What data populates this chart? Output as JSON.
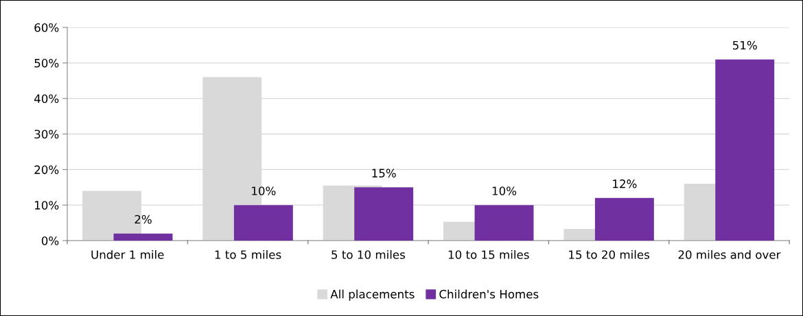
{
  "chart_data": {
    "type": "bar",
    "categories": [
      "Under 1 mile",
      "1 to 5 miles",
      "5 to 10 miles",
      "10 to 15 miles",
      "15 to 20 miles",
      "20 miles and over"
    ],
    "series": [
      {
        "name": "All placements",
        "color": "#d9d9d9",
        "values": [
          14,
          46,
          15.5,
          5.3,
          3.3,
          16
        ]
      },
      {
        "name": "Children's Homes",
        "color": "#7030a0",
        "values": [
          2,
          10,
          15,
          10,
          12,
          51
        ],
        "value_labels": [
          "2%",
          "10%",
          "15%",
          "10%",
          "12%",
          "51%"
        ]
      }
    ],
    "ylim": [
      0,
      60
    ],
    "yticks": [
      {
        "value": 0,
        "label": "0%"
      },
      {
        "value": 10,
        "label": "10%"
      },
      {
        "value": 20,
        "label": "20%"
      },
      {
        "value": 30,
        "label": "30%"
      },
      {
        "value": 40,
        "label": "40%"
      },
      {
        "value": 50,
        "label": "50%"
      },
      {
        "value": 60,
        "label": "60%"
      }
    ],
    "grid": "y",
    "legend": "bottom"
  }
}
